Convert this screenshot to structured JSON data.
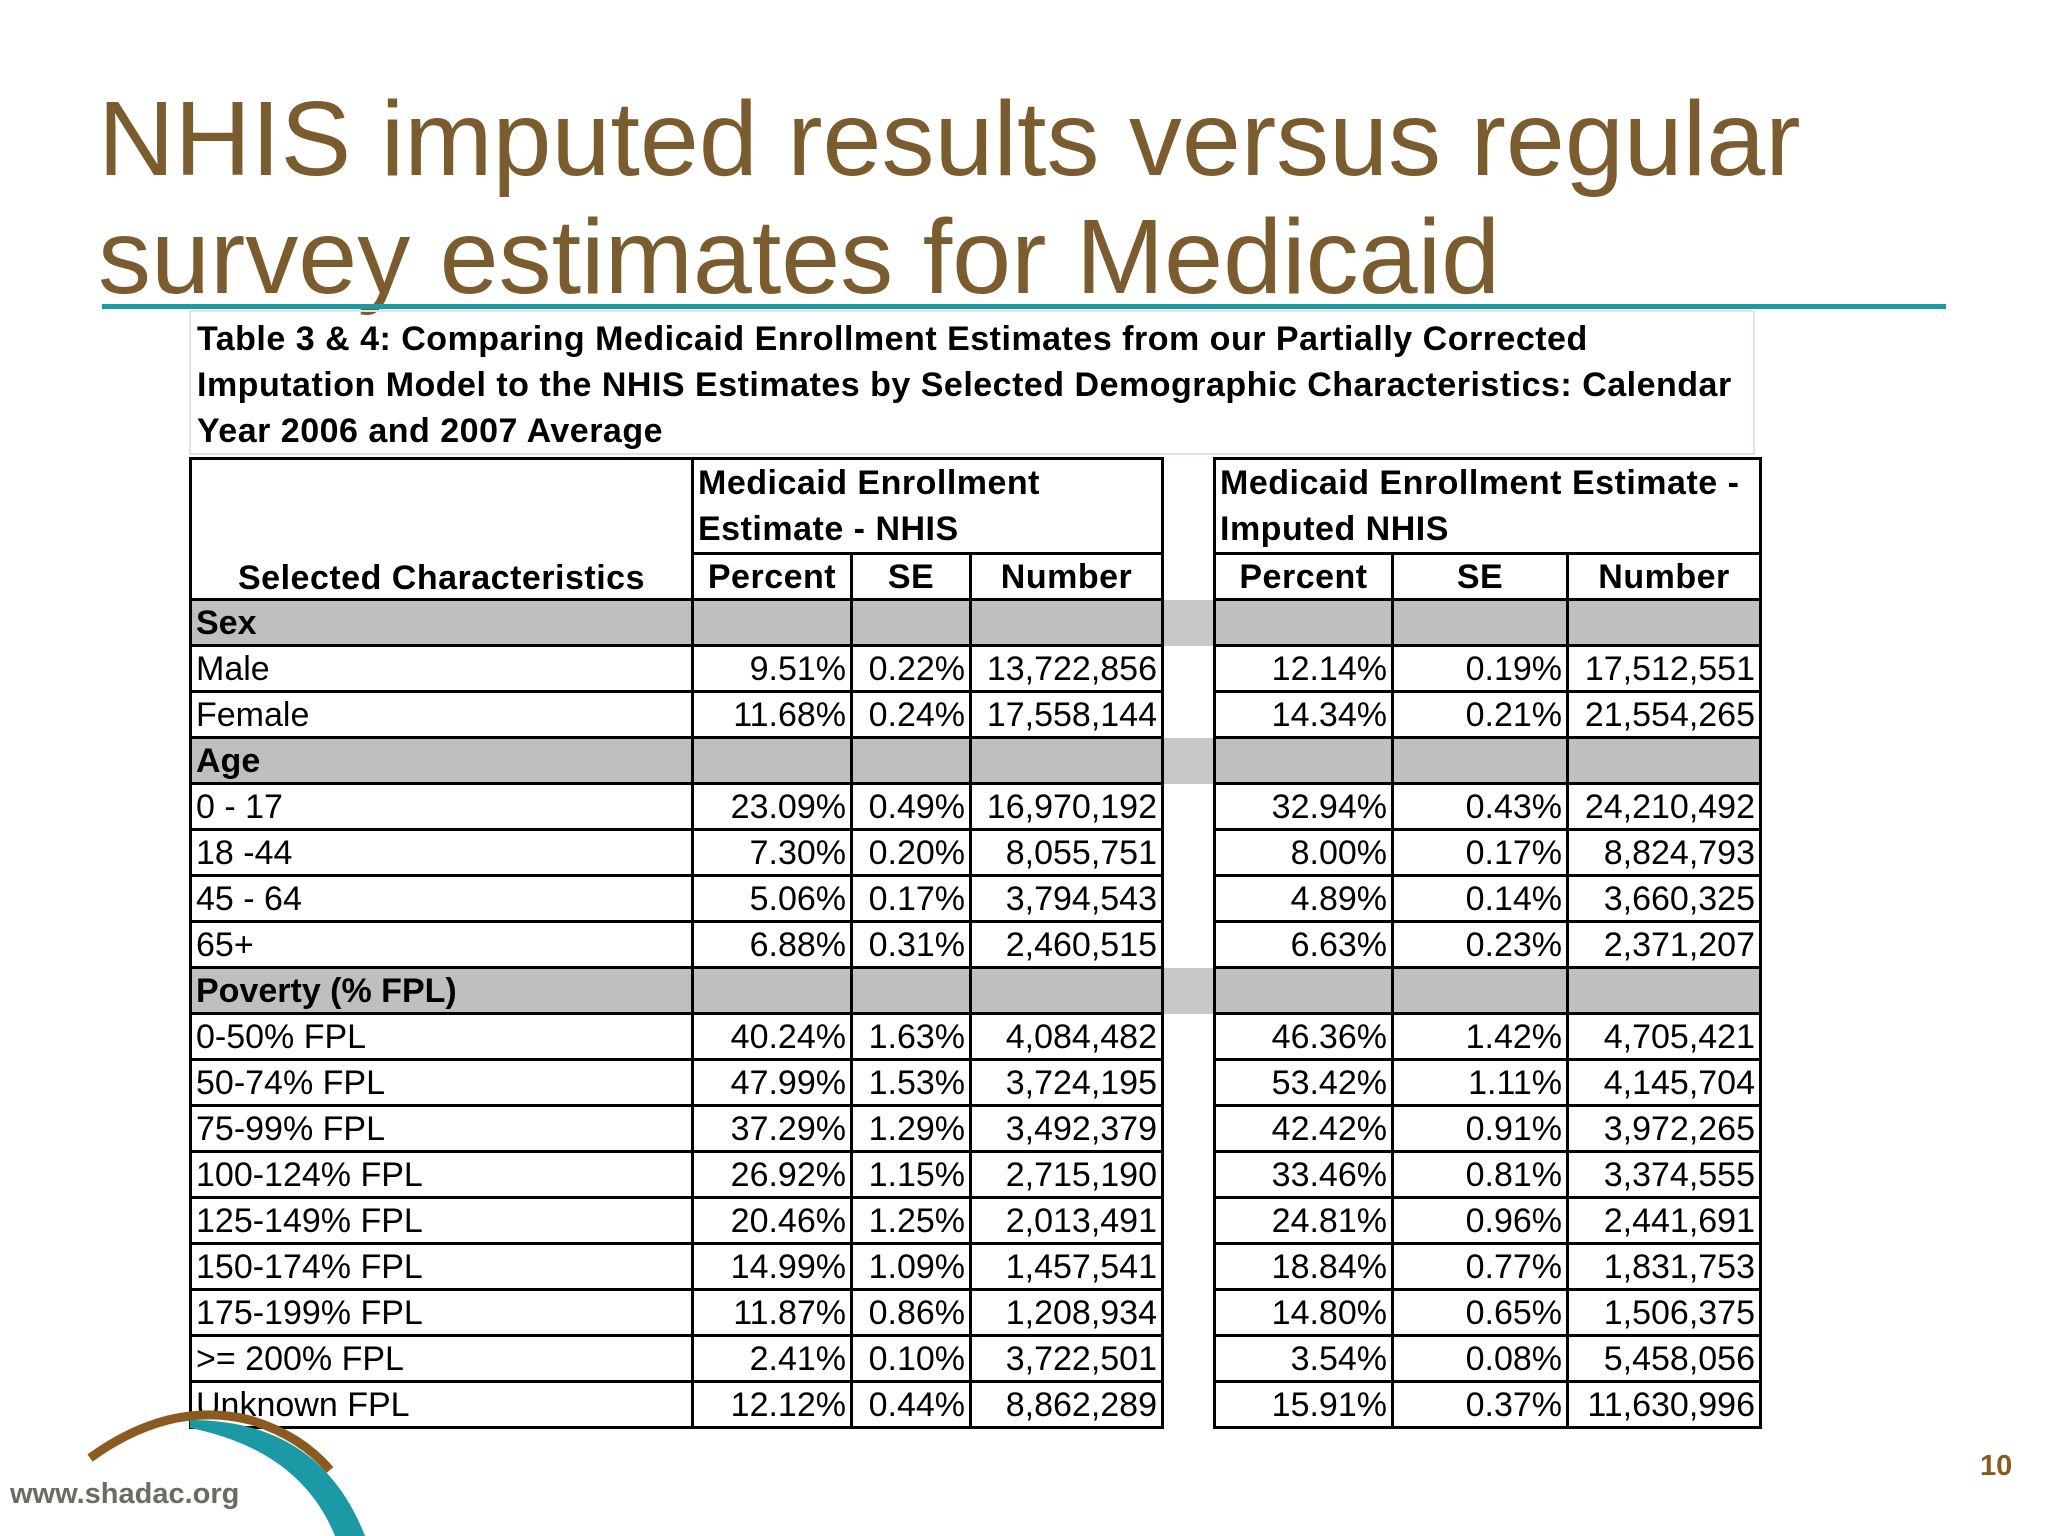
{
  "title": "NHIS imputed results versus regular survey estimates for Medicaid",
  "table": {
    "caption": "Table 3 & 4:  Comparing Medicaid Enrollment Estimates from our Partially Corrected Imputation Model to the NHIS Estimates by Selected Demographic Characteristics: Calendar Year 2006 and 2007 Average",
    "group_headers": [
      "Medicaid Enrollment Estimate - NHIS",
      "Medicaid Enrollment Estimate - Imputed NHIS"
    ],
    "row_header": "Selected Characteristics",
    "columns": [
      "Percent",
      "SE",
      "Number",
      "Percent",
      "SE",
      "Number"
    ],
    "rows": [
      {
        "label": "Sex"
      },
      {
        "label": "Male",
        "cells": [
          "9.51%",
          "0.22%",
          "13,722,856",
          "12.14%",
          "0.19%",
          "17,512,551"
        ]
      },
      {
        "label": "Female",
        "cells": [
          "11.68%",
          "0.24%",
          "17,558,144",
          "14.34%",
          "0.21%",
          "21,554,265"
        ]
      },
      {
        "label": "Age"
      },
      {
        "label": "0 - 17",
        "cells": [
          "23.09%",
          "0.49%",
          "16,970,192",
          "32.94%",
          "0.43%",
          "24,210,492"
        ]
      },
      {
        "label": "18 -44",
        "cells": [
          "7.30%",
          "0.20%",
          "8,055,751",
          "8.00%",
          "0.17%",
          "8,824,793"
        ]
      },
      {
        "label": "45 - 64",
        "cells": [
          "5.06%",
          "0.17%",
          "3,794,543",
          "4.89%",
          "0.14%",
          "3,660,325"
        ]
      },
      {
        "label": "65+",
        "cells": [
          "6.88%",
          "0.31%",
          "2,460,515",
          "6.63%",
          "0.23%",
          "2,371,207"
        ]
      },
      {
        "label": "Poverty (% FPL)"
      },
      {
        "label": "0-50% FPL",
        "cells": [
          "40.24%",
          "1.63%",
          "4,084,482",
          "46.36%",
          "1.42%",
          "4,705,421"
        ]
      },
      {
        "label": "50-74% FPL",
        "cells": [
          "47.99%",
          "1.53%",
          "3,724,195",
          "53.42%",
          "1.11%",
          "4,145,704"
        ]
      },
      {
        "label": "75-99% FPL",
        "cells": [
          "37.29%",
          "1.29%",
          "3,492,379",
          "42.42%",
          "0.91%",
          "3,972,265"
        ]
      },
      {
        "label": "100-124% FPL",
        "cells": [
          "26.92%",
          "1.15%",
          "2,715,190",
          "33.46%",
          "0.81%",
          "3,374,555"
        ]
      },
      {
        "label": "125-149% FPL",
        "cells": [
          "20.46%",
          "1.25%",
          "2,013,491",
          "24.81%",
          "0.96%",
          "2,441,691"
        ]
      },
      {
        "label": "150-174% FPL",
        "cells": [
          "14.99%",
          "1.09%",
          "1,457,541",
          "18.84%",
          "0.77%",
          "1,831,753"
        ]
      },
      {
        "label": "175-199% FPL",
        "cells": [
          "11.87%",
          "0.86%",
          "1,208,934",
          "14.80%",
          "0.65%",
          "1,506,375"
        ]
      },
      {
        "label": ">= 200% FPL",
        "cells": [
          "2.41%",
          "0.10%",
          "3,722,501",
          "3.54%",
          "0.08%",
          "5,458,056"
        ]
      },
      {
        "label": "Unknown FPL",
        "cells": [
          "12.12%",
          "0.44%",
          "8,862,289",
          "15.91%",
          "0.37%",
          "11,630,996"
        ]
      }
    ]
  },
  "footer": {
    "url": "www.shadac.org",
    "page": "10"
  }
}
